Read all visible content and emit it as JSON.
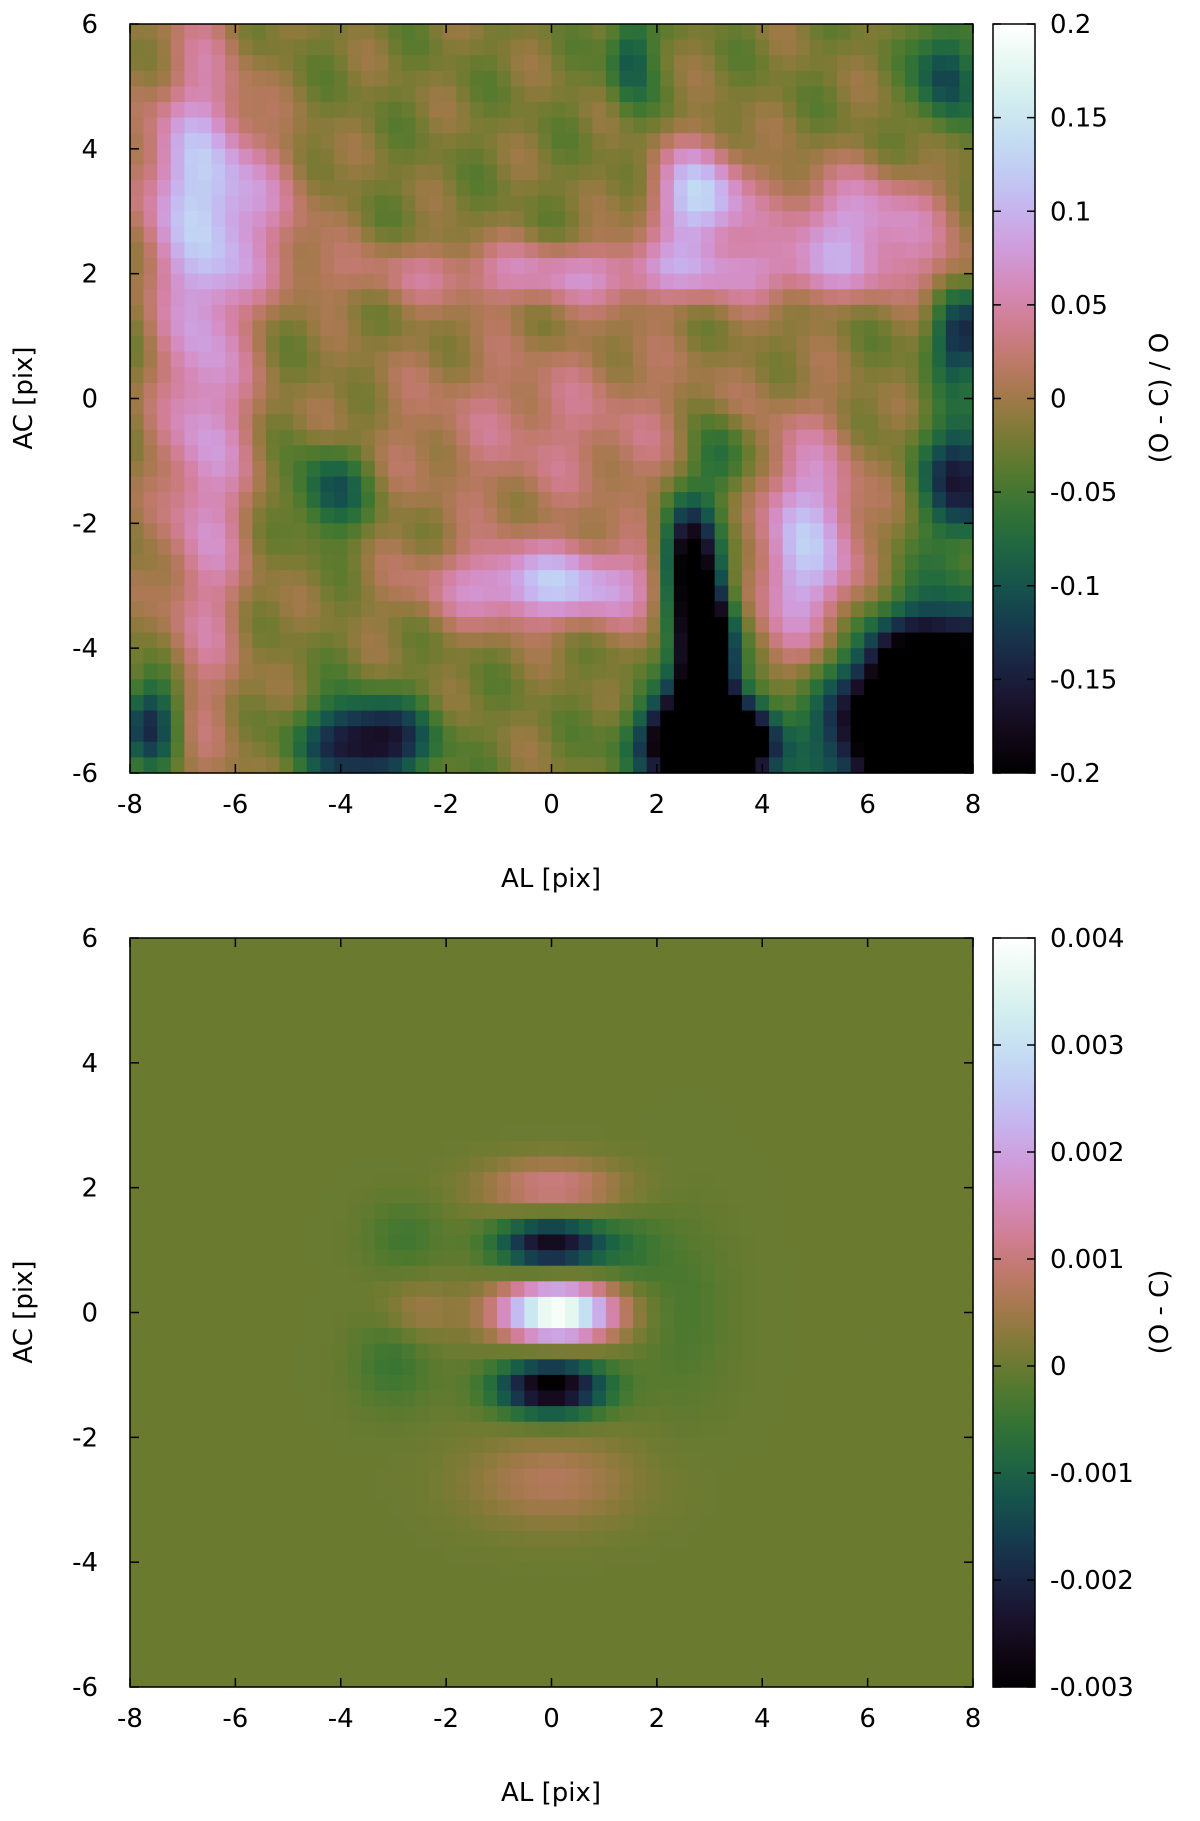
{
  "chart_data": [
    {
      "type": "heatmap",
      "title": "",
      "xlabel": "AL [pix]",
      "ylabel": "AC [pix]",
      "colorbar_label": "(O - C) / O",
      "xlim": [
        -8,
        8
      ],
      "ylim": [
        -6,
        6
      ],
      "xticks": [
        "-8",
        "-6",
        "-4",
        "-2",
        "0",
        "2",
        "4",
        "6",
        "8"
      ],
      "yticks": [
        "-6",
        "-4",
        "-2",
        "0",
        "2",
        "4",
        "6"
      ],
      "xtick_values": [
        -8,
        -6,
        -4,
        -2,
        0,
        2,
        4,
        6,
        8
      ],
      "ytick_values": [
        -6,
        -4,
        -2,
        0,
        2,
        4,
        6
      ],
      "colorbar_range": [
        -0.2,
        0.2
      ],
      "colorbar_ticks": [
        "-0.2",
        "-0.15",
        "-0.1",
        "-0.05",
        "0",
        "0.05",
        "0.1",
        "0.15",
        "0.2"
      ],
      "colorbar_tick_values": [
        -0.2,
        -0.15,
        -0.1,
        -0.05,
        0,
        0.05,
        0.1,
        0.15,
        0.2
      ],
      "colormap": "cubehelix",
      "grid": false,
      "features": [
        {
          "shape": "blob",
          "x": -6.6,
          "y": 0.5,
          "sx": 0.6,
          "sy": 4.0,
          "amp": 0.1
        },
        {
          "shape": "blob",
          "x": -7.0,
          "y": 3.5,
          "sx": 1.0,
          "sy": 1.0,
          "amp": 0.06
        },
        {
          "shape": "blob",
          "x": -5.5,
          "y": 3.0,
          "sx": 0.8,
          "sy": 0.8,
          "amp": 0.05
        },
        {
          "shape": "blob",
          "x": 1.5,
          "y": 2.0,
          "sx": 4.0,
          "sy": 0.35,
          "amp": 0.08
        },
        {
          "shape": "blob",
          "x": 2.8,
          "y": 3.2,
          "sx": 0.6,
          "sy": 0.6,
          "amp": 0.15
        },
        {
          "shape": "blob",
          "x": 5.8,
          "y": 2.8,
          "sx": 1.2,
          "sy": 0.6,
          "amp": 0.1
        },
        {
          "shape": "blob",
          "x": 0.0,
          "y": -3.0,
          "sx": 1.6,
          "sy": 0.45,
          "amp": 0.13
        },
        {
          "shape": "blob",
          "x": 4.9,
          "y": -2.5,
          "sx": 0.7,
          "sy": 1.3,
          "amp": 0.13
        },
        {
          "shape": "blob",
          "x": 0.0,
          "y": -0.5,
          "sx": 2.5,
          "sy": 1.1,
          "amp": 0.05
        },
        {
          "shape": "blob",
          "x": -4.2,
          "y": -1.5,
          "sx": 0.5,
          "sy": 0.5,
          "amp": -0.09
        },
        {
          "shape": "blob",
          "x": -3.5,
          "y": -5.5,
          "sx": 0.8,
          "sy": 0.45,
          "amp": -0.17
        },
        {
          "shape": "blob",
          "x": -7.6,
          "y": -5.2,
          "sx": 0.4,
          "sy": 0.5,
          "amp": -0.12
        },
        {
          "shape": "blob",
          "x": 2.9,
          "y": -4.2,
          "sx": 0.35,
          "sy": 1.0,
          "amp": -0.35
        },
        {
          "shape": "blob",
          "x": 2.6,
          "y": -2.6,
          "sx": 0.35,
          "sy": 0.6,
          "amp": -0.18
        },
        {
          "shape": "blob",
          "x": 3.0,
          "y": -5.5,
          "sx": 0.8,
          "sy": 0.45,
          "amp": -0.4
        },
        {
          "shape": "blob",
          "x": 7.4,
          "y": -5.2,
          "sx": 1.2,
          "sy": 1.0,
          "amp": -0.5
        },
        {
          "shape": "blob",
          "x": 7.8,
          "y": -1.3,
          "sx": 0.5,
          "sy": 0.7,
          "amp": -0.14
        },
        {
          "shape": "blob",
          "x": 7.8,
          "y": 1.0,
          "sx": 0.4,
          "sy": 0.5,
          "amp": -0.12
        },
        {
          "shape": "blob",
          "x": 7.5,
          "y": 5.2,
          "sx": 0.4,
          "sy": 0.6,
          "amp": -0.1
        },
        {
          "shape": "blob",
          "x": 1.5,
          "y": 5.5,
          "sx": 0.3,
          "sy": 0.6,
          "amp": -0.08
        },
        {
          "shape": "blob",
          "x": 3.2,
          "y": -1.0,
          "sx": 0.4,
          "sy": 0.5,
          "amp": -0.08
        }
      ],
      "baseline": -0.02
    },
    {
      "type": "heatmap",
      "title": "",
      "xlabel": "AL [pix]",
      "ylabel": "AC [pix]",
      "colorbar_label": "(O - C)",
      "xlim": [
        -8,
        8
      ],
      "ylim": [
        -6,
        6
      ],
      "xticks": [
        "-8",
        "-6",
        "-4",
        "-2",
        "0",
        "2",
        "4",
        "6",
        "8"
      ],
      "yticks": [
        "-6",
        "-4",
        "-2",
        "0",
        "2",
        "4",
        "6"
      ],
      "xtick_values": [
        -8,
        -6,
        -4,
        -2,
        0,
        2,
        4,
        6,
        8
      ],
      "ytick_values": [
        -6,
        -4,
        -2,
        0,
        2,
        4,
        6
      ],
      "colorbar_range": [
        -0.003,
        0.004
      ],
      "colorbar_ticks": [
        "-0.003",
        "-0.002",
        "-0.001",
        "0",
        "0.001",
        "0.002",
        "0.003",
        "0.004"
      ],
      "colorbar_tick_values": [
        -0.003,
        -0.002,
        -0.001,
        0,
        0.001,
        0.002,
        0.003,
        0.004
      ],
      "colormap": "cubehelix",
      "grid": false,
      "features": [
        {
          "shape": "blob",
          "x": 0.1,
          "y": 0.0,
          "sx": 0.75,
          "sy": 0.32,
          "amp": 0.0042
        },
        {
          "shape": "blob",
          "x": 0.0,
          "y": 1.1,
          "sx": 0.7,
          "sy": 0.28,
          "amp": -0.0026
        },
        {
          "shape": "blob",
          "x": 0.0,
          "y": -1.2,
          "sx": 0.7,
          "sy": 0.3,
          "amp": -0.0031
        },
        {
          "shape": "blob",
          "x": 0.0,
          "y": 2.0,
          "sx": 0.9,
          "sy": 0.3,
          "amp": 0.0011
        },
        {
          "shape": "blob",
          "x": 0.0,
          "y": -2.7,
          "sx": 1.1,
          "sy": 0.5,
          "amp": 0.0007
        },
        {
          "shape": "blob",
          "x": -2.5,
          "y": 0.0,
          "sx": 0.5,
          "sy": 0.35,
          "amp": 0.0005
        },
        {
          "shape": "blob",
          "x": -3.0,
          "y": -0.8,
          "sx": 0.5,
          "sy": 0.5,
          "amp": -0.0005
        },
        {
          "shape": "blob",
          "x": -2.8,
          "y": 1.2,
          "sx": 0.5,
          "sy": 0.4,
          "amp": -0.0004
        },
        {
          "shape": "blob",
          "x": 2.5,
          "y": 0.0,
          "sx": 0.6,
          "sy": 1.0,
          "amp": -0.0003
        },
        {
          "shape": "blob",
          "x": 1.5,
          "y": 1.0,
          "sx": 0.5,
          "sy": 0.4,
          "amp": -0.0004
        }
      ],
      "baseline": 0.0
    }
  ]
}
